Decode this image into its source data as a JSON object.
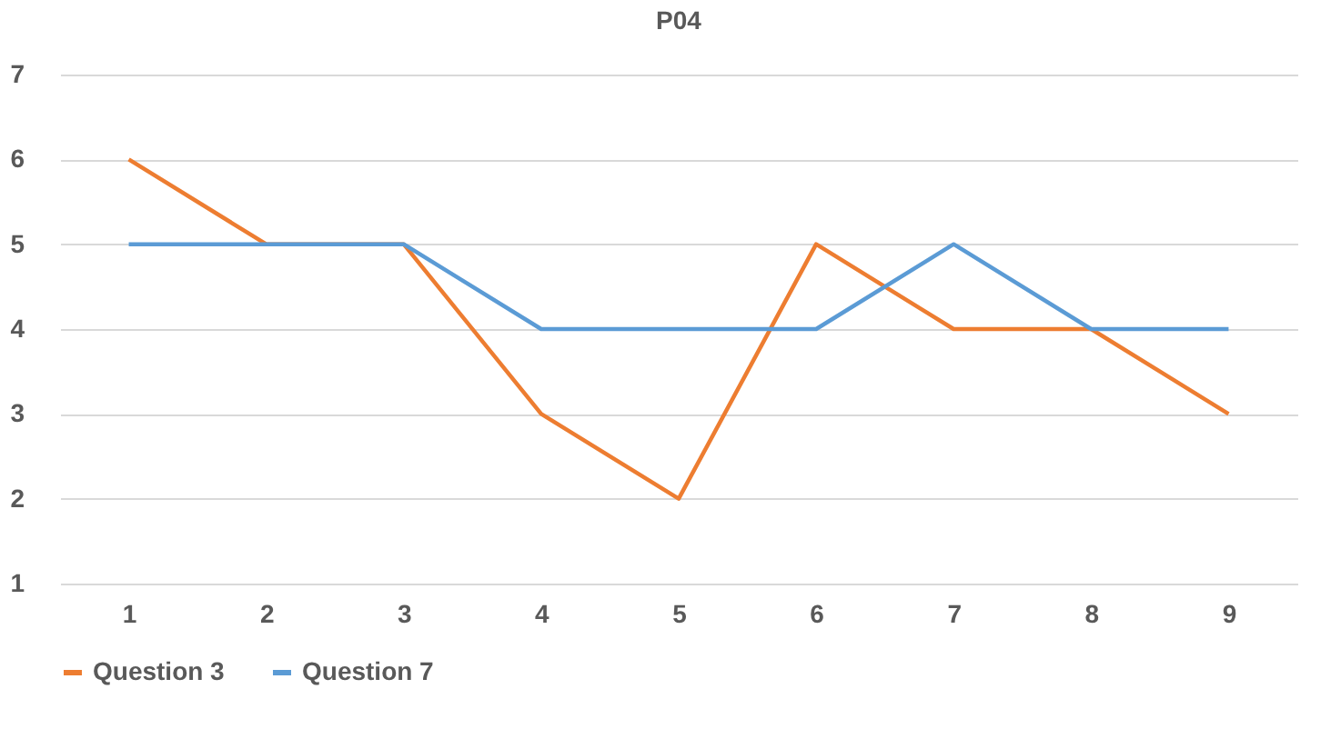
{
  "chart_data": {
    "type": "line",
    "title": "P04",
    "categories": [
      "1",
      "2",
      "3",
      "4",
      "5",
      "6",
      "7",
      "8",
      "9"
    ],
    "series": [
      {
        "name": "Question 3",
        "color": "#ed7d31",
        "values": [
          6,
          5,
          5,
          3,
          2,
          5,
          4,
          4,
          3
        ]
      },
      {
        "name": "Question 7",
        "color": "#5b9bd5",
        "values": [
          5,
          5,
          5,
          4,
          4,
          4,
          5,
          4,
          4
        ]
      }
    ],
    "ylim": [
      1,
      7
    ],
    "yticks": [
      1,
      2,
      3,
      4,
      5,
      6,
      7
    ],
    "grid": "y",
    "legend": "bottom",
    "marker": "none",
    "line_style": "solid"
  }
}
